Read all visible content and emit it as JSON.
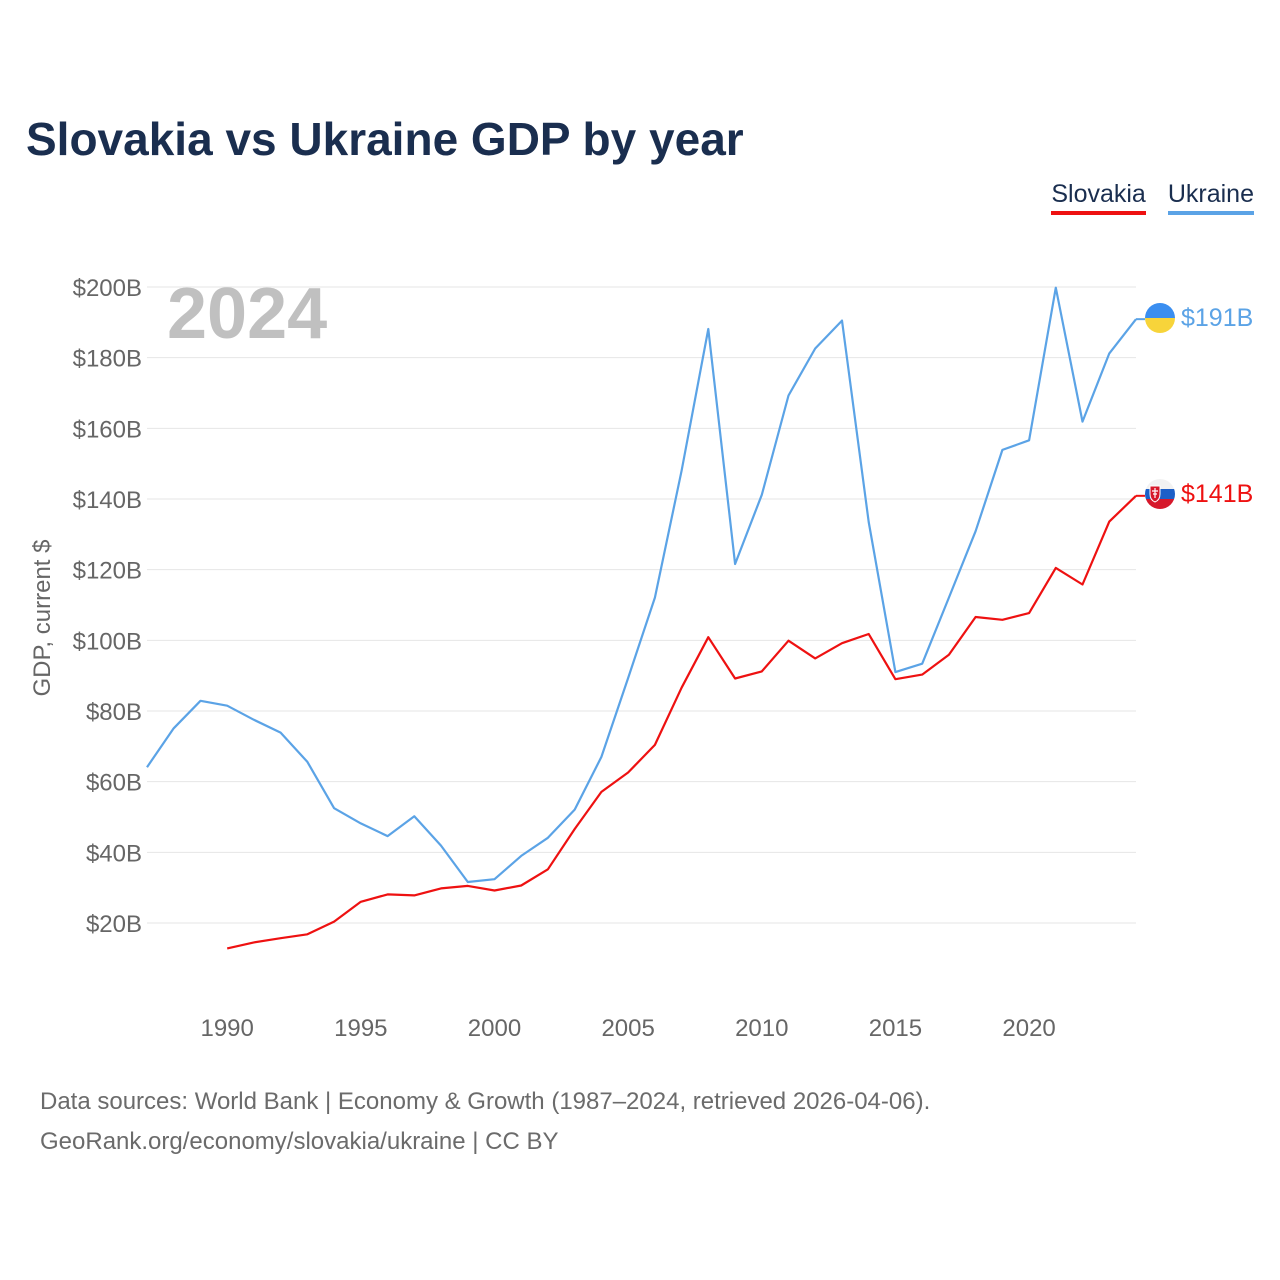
{
  "title": "Slovakia vs Ukraine GDP by year",
  "legend": [
    {
      "label": "Slovakia",
      "color": "#ee1111"
    },
    {
      "label": "Ukraine",
      "color": "#5ba3e6"
    }
  ],
  "year_overlay": "2024",
  "end_labels": {
    "ukraine": "$191B",
    "slovakia": "$141B"
  },
  "footer": {
    "line1": "Data sources: World Bank | Economy & Growth (1987–2024, retrieved 2026-04-06).",
    "line2": "GeoRank.org/economy/slovakia/ukraine | CC BY"
  },
  "chart_data": {
    "type": "line",
    "title": "Slovakia vs Ukraine GDP by year",
    "xlabel": "",
    "ylabel": "GDP, current $",
    "xlim": [
      1987,
      2024
    ],
    "ylim": [
      0,
      200
    ],
    "y_ticks": [
      20,
      40,
      60,
      80,
      100,
      120,
      140,
      160,
      180,
      200
    ],
    "y_tick_labels": [
      "$20B",
      "$40B",
      "$60B",
      "$80B",
      "$100B",
      "$120B",
      "$140B",
      "$160B",
      "$180B",
      "$200B"
    ],
    "x_ticks": [
      1990,
      1995,
      2000,
      2005,
      2010,
      2015,
      2020
    ],
    "x_tick_labels": [
      "1990",
      "1995",
      "2000",
      "2005",
      "2010",
      "2015",
      "2020"
    ],
    "grid": true,
    "legend_position": "top-right",
    "series": [
      {
        "name": "Ukraine",
        "color": "#5ba3e6",
        "x": [
          1987,
          1988,
          1989,
          1990,
          1991,
          1992,
          1993,
          1994,
          1995,
          1996,
          1997,
          1998,
          1999,
          2000,
          2001,
          2002,
          2003,
          2004,
          2005,
          2006,
          2007,
          2008,
          2009,
          2010,
          2011,
          2012,
          2013,
          2014,
          2015,
          2016,
          2017,
          2018,
          2019,
          2020,
          2021,
          2022,
          2023,
          2024
        ],
        "values": [
          64.1,
          75.1,
          82.9,
          81.5,
          77.5,
          73.9,
          65.6,
          52.5,
          48.2,
          44.6,
          50.2,
          41.9,
          31.6,
          32.4,
          39.0,
          44.1,
          52.1,
          67.0,
          89.3,
          112.1,
          148.0,
          188.1,
          121.6,
          141.2,
          169.3,
          182.6,
          190.5,
          133.5,
          91.0,
          93.4,
          112.1,
          130.9,
          153.9,
          156.6,
          199.8,
          161.9,
          181.2,
          190.9
        ]
      },
      {
        "name": "Slovakia",
        "color": "#ee1111",
        "x": [
          1990,
          1991,
          1992,
          1993,
          1994,
          1995,
          1996,
          1997,
          1998,
          1999,
          2000,
          2001,
          2002,
          2003,
          2004,
          2005,
          2006,
          2007,
          2008,
          2009,
          2010,
          2011,
          2012,
          2013,
          2014,
          2015,
          2016,
          2017,
          2018,
          2019,
          2020,
          2021,
          2022,
          2023,
          2024
        ],
        "values": [
          12.8,
          14.5,
          15.7,
          16.8,
          20.4,
          26.0,
          28.1,
          27.8,
          29.8,
          30.5,
          29.2,
          30.6,
          35.2,
          46.6,
          57.1,
          62.6,
          70.4,
          86.6,
          100.9,
          89.2,
          91.2,
          99.9,
          94.9,
          99.2,
          101.8,
          89.0,
          90.3,
          95.9,
          106.6,
          105.8,
          107.7,
          120.5,
          115.8,
          133.6,
          140.9
        ]
      }
    ]
  }
}
